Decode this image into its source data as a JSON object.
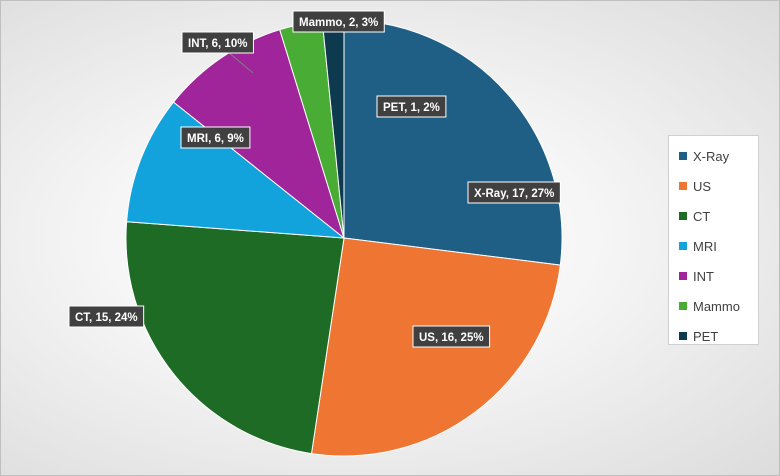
{
  "chart_data": {
    "type": "pie",
    "title": "",
    "categories": [
      "X-Ray",
      "US",
      "CT",
      "MRI",
      "INT",
      "Mammo",
      "PET"
    ],
    "values": [
      17,
      16,
      15,
      6,
      6,
      2,
      1
    ],
    "percentages": [
      27,
      25,
      24,
      9,
      10,
      3,
      2
    ],
    "data_labels": [
      "X-Ray, 17, 27%",
      "US, 16, 25%",
      "CT, 15, 24%",
      "MRI, 6, 9%",
      "INT, 6, 10%",
      "Mammo, 2, 3%",
      "PET, 1, 2%"
    ],
    "colors": [
      "#1f5f86",
      "#ef7533",
      "#1e6b25",
      "#12a3dd",
      "#a0249a",
      "#49ac35",
      "#0e3a50"
    ],
    "legend_position": "right"
  }
}
